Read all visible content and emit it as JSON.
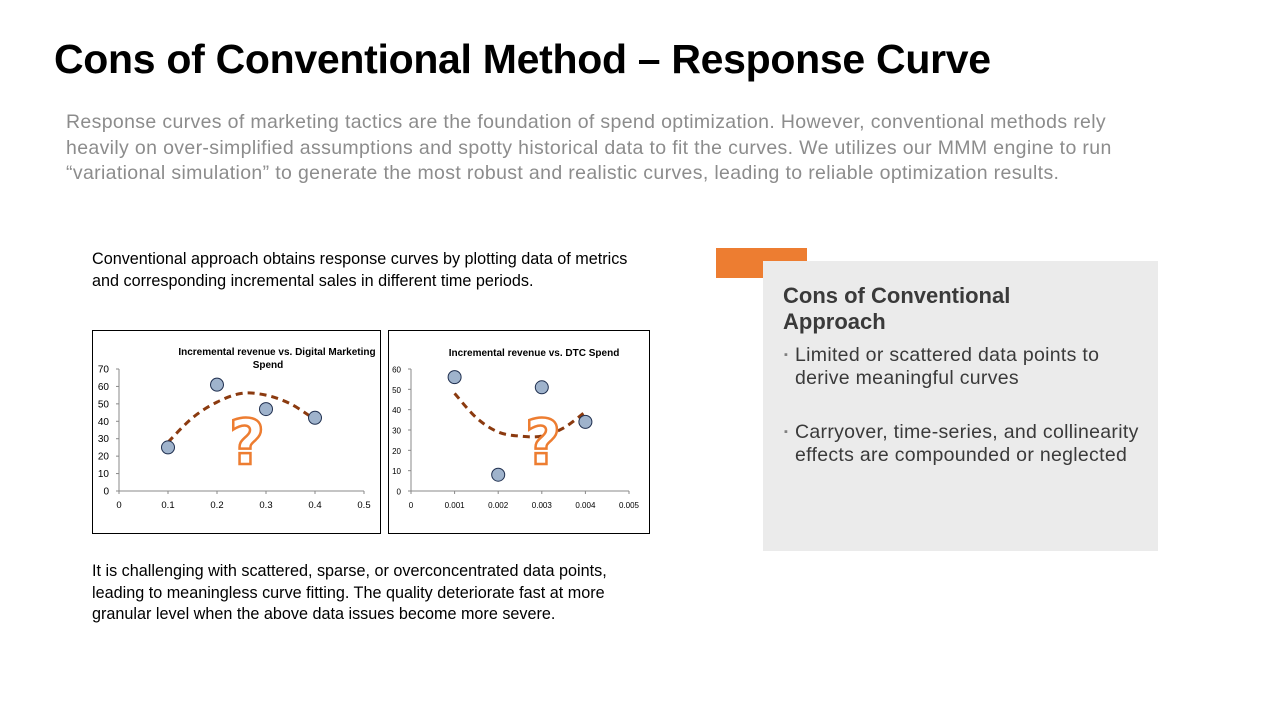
{
  "slide": {
    "title": "Cons of Conventional Method – Response Curve",
    "intro": "Response curves of marketing tactics are the foundation of spend optimization. However, conventional methods rely heavily on over-simplified assumptions and spotty historical data to fit the curves. We utilizes our MMM engine to run “variational simulation” to generate the most robust and realistic curves, leading to reliable optimization results.",
    "left_top_text": "Conventional approach obtains response curves by plotting data of metrics and corresponding incremental sales in different time periods.",
    "left_bottom_text": "It is challenging with scattered, sparse, or overconcentrated data points, leading to meaningless curve fitting. The quality deteriorate fast at more granular level when the above data issues become more severe.",
    "cons_title": "Cons of Conventional Approach",
    "cons_items": [
      "Limited or scattered data points to derive meaningful curves",
      "Carryover, time-series, and collinearity effects are compounded or neglected"
    ],
    "bullet": "▪",
    "question_mark": "?"
  },
  "colors": {
    "accent_orange": "#ed7d31",
    "curve_brown": "#8b3a0f",
    "point_fill": "#9fb3cc",
    "cons_box_bg": "#ebebeb",
    "intro_gray": "#8c8c8c"
  },
  "chart_data": [
    {
      "type": "scatter",
      "title": "Incremental revenue vs. Digital Marketing Spend",
      "xlim": [
        0,
        0.5
      ],
      "ylim": [
        0,
        70
      ],
      "xticks": [
        "0",
        "0.1",
        "0.2",
        "0.3",
        "0.4",
        "0.5"
      ],
      "yticks": [
        "0",
        "10",
        "20",
        "30",
        "40",
        "50",
        "60",
        "70"
      ],
      "points": [
        {
          "x": 0.1,
          "y": 25
        },
        {
          "x": 0.2,
          "y": 61
        },
        {
          "x": 0.3,
          "y": 47
        },
        {
          "x": 0.4,
          "y": 42
        }
      ],
      "trend_curve": [
        {
          "x": 0.1,
          "y": 28
        },
        {
          "x": 0.15,
          "y": 42
        },
        {
          "x": 0.2,
          "y": 51
        },
        {
          "x": 0.25,
          "y": 56
        },
        {
          "x": 0.3,
          "y": 55
        },
        {
          "x": 0.35,
          "y": 50
        },
        {
          "x": 0.4,
          "y": 41
        }
      ],
      "grid": false,
      "legend": "none"
    },
    {
      "type": "scatter",
      "title": "Incremental revenue vs. DTC Spend",
      "xlim": [
        0,
        0.005
      ],
      "ylim": [
        0,
        60
      ],
      "xticks": [
        "0",
        "0.001",
        "0.002",
        "0.003",
        "0.004",
        "0.005"
      ],
      "yticks": [
        "0",
        "10",
        "20",
        "30",
        "40",
        "50",
        "60"
      ],
      "points": [
        {
          "x": 0.001,
          "y": 56
        },
        {
          "x": 0.002,
          "y": 8
        },
        {
          "x": 0.003,
          "y": 51
        },
        {
          "x": 0.004,
          "y": 34
        }
      ],
      "trend_curve": [
        {
          "x": 0.001,
          "y": 48
        },
        {
          "x": 0.0015,
          "y": 36
        },
        {
          "x": 0.002,
          "y": 29
        },
        {
          "x": 0.0025,
          "y": 27
        },
        {
          "x": 0.003,
          "y": 27
        },
        {
          "x": 0.0035,
          "y": 31
        },
        {
          "x": 0.004,
          "y": 39
        }
      ],
      "grid": false,
      "legend": "none"
    }
  ]
}
